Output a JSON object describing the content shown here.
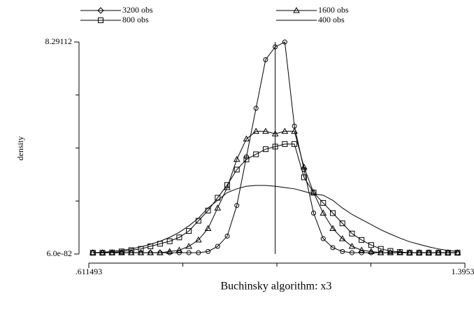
{
  "chart_data": {
    "type": "line",
    "xlabel": "Buchinsky algorithm: x3",
    "ylabel": "density",
    "x": [
      0.62,
      0.64,
      0.66,
      0.68,
      0.7,
      0.72,
      0.74,
      0.76,
      0.78,
      0.8,
      0.82,
      0.84,
      0.86,
      0.88,
      0.9,
      0.92,
      0.94,
      0.96,
      0.98,
      1.0,
      1.02,
      1.04,
      1.06,
      1.08,
      1.1,
      1.12,
      1.14,
      1.16,
      1.18,
      1.2,
      1.22,
      1.24,
      1.26,
      1.28,
      1.3,
      1.32,
      1.34,
      1.36,
      1.38
    ],
    "series": [
      {
        "name": "3200 obs",
        "color": "#000000",
        "marker": "circle",
        "values": [
          0.05,
          0.05,
          0.05,
          0.05,
          0.05,
          0.05,
          0.05,
          0.05,
          0.05,
          0.05,
          0.05,
          0.05,
          0.1,
          0.3,
          0.7,
          1.9,
          3.8,
          5.7,
          7.6,
          8.1,
          8.29,
          5.0,
          3.3,
          1.6,
          0.6,
          0.25,
          0.1,
          0.05,
          0.05,
          0.05,
          0.05,
          0.05,
          0.05,
          0.05,
          0.05,
          0.05,
          0.05,
          0.05,
          0.05
        ]
      },
      {
        "name": "1600 obs",
        "color": "#000000",
        "marker": "triangle",
        "values": [
          0.05,
          0.05,
          0.05,
          0.05,
          0.05,
          0.05,
          0.05,
          0.05,
          0.1,
          0.15,
          0.3,
          0.55,
          1.0,
          1.8,
          2.6,
          3.7,
          4.5,
          4.8,
          4.8,
          4.7,
          4.8,
          4.8,
          3.4,
          2.4,
          1.6,
          1.0,
          0.6,
          0.3,
          0.15,
          0.1,
          0.05,
          0.05,
          0.05,
          0.05,
          0.05,
          0.05,
          0.05,
          0.05,
          0.05
        ]
      },
      {
        "name": "800 obs",
        "color": "#000000",
        "marker": "square",
        "values": [
          0.05,
          0.05,
          0.06,
          0.1,
          0.15,
          0.2,
          0.3,
          0.4,
          0.5,
          0.65,
          0.9,
          1.3,
          1.7,
          2.2,
          2.7,
          3.3,
          3.7,
          3.9,
          4.1,
          4.2,
          4.3,
          4.3,
          3.0,
          2.4,
          2.0,
          1.6,
          1.2,
          0.8,
          0.55,
          0.35,
          0.2,
          0.12,
          0.08,
          0.05,
          0.05,
          0.05,
          0.05,
          0.05,
          0.05
        ]
      },
      {
        "name": "400 obs",
        "color": "#000000",
        "marker": "none",
        "values": [
          0.05,
          0.07,
          0.1,
          0.15,
          0.2,
          0.28,
          0.38,
          0.5,
          0.65,
          0.85,
          1.1,
          1.4,
          1.8,
          2.1,
          2.4,
          2.55,
          2.65,
          2.68,
          2.68,
          2.65,
          2.6,
          2.55,
          2.45,
          2.35,
          2.3,
          2.1,
          1.8,
          1.55,
          1.35,
          1.15,
          0.95,
          0.78,
          0.62,
          0.48,
          0.38,
          0.28,
          0.2,
          0.14,
          0.1
        ]
      }
    ],
    "xline": 1.0,
    "xlim": [
      0.611493,
      1.39532
    ],
    "ylim": [
      6e-82,
      8.29112
    ],
    "xticks": [
      {
        "value": 0.611493,
        "label": ".611493"
      },
      1.39532
    ],
    "yticks": [
      {
        "value": 6e-82,
        "label": "6.0e-82"
      },
      8.29112
    ]
  }
}
